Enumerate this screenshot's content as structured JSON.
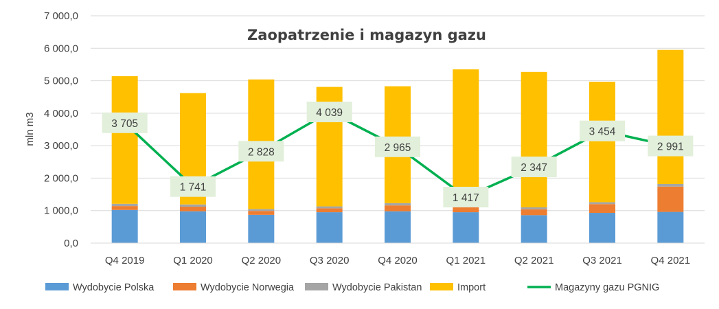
{
  "chart_data": {
    "type": "bar",
    "stacked": true,
    "title": "Zaopatrzenie i magazyn gazu",
    "ylabel": "mln m3",
    "xlabel": "",
    "ylim": [
      0,
      7000
    ],
    "yticks": [
      "0,0",
      "1 000,0",
      "2 000,0",
      "3 000,0",
      "4 000,0",
      "5 000,0",
      "6 000,0",
      "7 000,0"
    ],
    "categories": [
      "Q4 2019",
      "Q1 2020",
      "Q2 2020",
      "Q3 2020",
      "Q4 2020",
      "Q1 2021",
      "Q2 2021",
      "Q3 2021",
      "Q4 2021"
    ],
    "grid": "horizontal",
    "legend_position": "bottom",
    "series": [
      {
        "name": "Wydobycie Polska",
        "kind": "bar",
        "color": "#5B9BD5",
        "values": [
          1020,
          980,
          870,
          950,
          980,
          950,
          860,
          930,
          960
        ]
      },
      {
        "name": "Wydobycie Norwegia",
        "kind": "bar",
        "color": "#ED7D31",
        "values": [
          120,
          140,
          120,
          120,
          180,
          160,
          180,
          270,
          780
        ]
      },
      {
        "name": "Wydobycie Pakistan",
        "kind": "bar",
        "color": "#A5A5A5",
        "values": [
          70,
          70,
          60,
          60,
          70,
          0,
          60,
          60,
          80
        ]
      },
      {
        "name": "Import",
        "kind": "bar",
        "color": "#FFC000",
        "values": [
          3930,
          3430,
          3990,
          3680,
          3600,
          4240,
          4170,
          3710,
          4130
        ]
      },
      {
        "name": "Magazyny gazu PGNIG",
        "kind": "line",
        "color": "#00B050",
        "values": [
          3705,
          1741,
          2828,
          4039,
          2965,
          1417,
          2347,
          3454,
          2991
        ],
        "labels": [
          "3 705",
          "1 741",
          "2 828",
          "4 039",
          "2 965",
          "1 417",
          "2 347",
          "3 454",
          "2 991"
        ]
      }
    ]
  }
}
